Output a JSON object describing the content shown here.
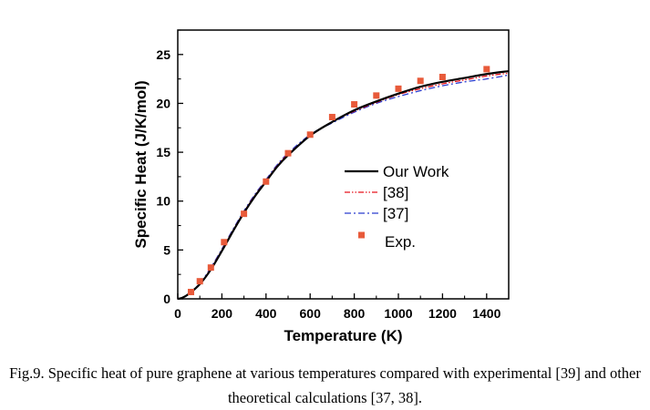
{
  "caption": {
    "line1": "Fig.9. Specific heat of pure graphene at various temperatures compared with experimental [39] and other",
    "line2": "theoretical calculations [37, 38]."
  },
  "colors": {
    "our_work": "#000000",
    "ref38": "#e8101a",
    "ref37": "#2b3ccf",
    "exp": "#e85a3a"
  },
  "chart_data": {
    "type": "line",
    "title": "",
    "xlabel": "Temperature (K)",
    "ylabel": "Specific Heat (J/K/mol)",
    "xlim": [
      0,
      1500
    ],
    "ylim": [
      0,
      27.5
    ],
    "xticks": [
      "0",
      "200",
      "400",
      "600",
      "800",
      "1000",
      "1200",
      "1400"
    ],
    "yticks": [
      "0",
      "5",
      "10",
      "15",
      "20",
      "25"
    ],
    "grid": false,
    "legend_position": "center-right",
    "series": [
      {
        "name": "Our Work",
        "style": "solid",
        "x": [
          0,
          20,
          50,
          100,
          150,
          200,
          250,
          300,
          350,
          400,
          450,
          500,
          600,
          700,
          800,
          900,
          1000,
          1100,
          1200,
          1300,
          1400,
          1500
        ],
        "y": [
          0,
          0.1,
          0.5,
          1.5,
          3.0,
          4.9,
          6.9,
          8.8,
          10.5,
          12.0,
          13.5,
          14.7,
          16.7,
          18.1,
          19.3,
          20.2,
          21.0,
          21.7,
          22.2,
          22.6,
          23.0,
          23.3
        ]
      },
      {
        "name": "[38]",
        "style": "dash-dot-dot",
        "x": [
          0,
          20,
          50,
          100,
          150,
          200,
          250,
          300,
          350,
          400,
          450,
          500,
          600,
          700,
          800,
          900,
          1000,
          1100,
          1200,
          1300,
          1400,
          1500
        ],
        "y": [
          0,
          0.1,
          0.5,
          1.5,
          3.1,
          5.0,
          7.0,
          8.9,
          10.6,
          12.1,
          13.6,
          14.8,
          16.7,
          18.1,
          19.2,
          20.1,
          20.9,
          21.5,
          22.0,
          22.4,
          22.8,
          23.1
        ]
      },
      {
        "name": "[37]",
        "style": "dash-dot",
        "x": [
          0,
          20,
          50,
          100,
          150,
          200,
          250,
          300,
          350,
          400,
          450,
          500,
          600,
          700,
          800,
          900,
          1000,
          1100,
          1200,
          1300,
          1400,
          1500
        ],
        "y": [
          0,
          0.1,
          0.55,
          1.6,
          3.2,
          5.1,
          7.1,
          9.0,
          10.7,
          12.2,
          13.7,
          14.9,
          16.8,
          18.0,
          19.1,
          20.0,
          20.7,
          21.3,
          21.8,
          22.2,
          22.5,
          22.9
        ]
      },
      {
        "name": "Exp.",
        "style": "markers",
        "x": [
          60,
          100,
          150,
          210,
          300,
          400,
          500,
          600,
          700,
          800,
          900,
          1000,
          1100,
          1200,
          1400
        ],
        "y": [
          0.7,
          1.8,
          3.2,
          5.8,
          8.7,
          12.0,
          14.9,
          16.8,
          18.6,
          19.9,
          20.8,
          21.5,
          22.3,
          22.7,
          23.5
        ]
      }
    ]
  }
}
